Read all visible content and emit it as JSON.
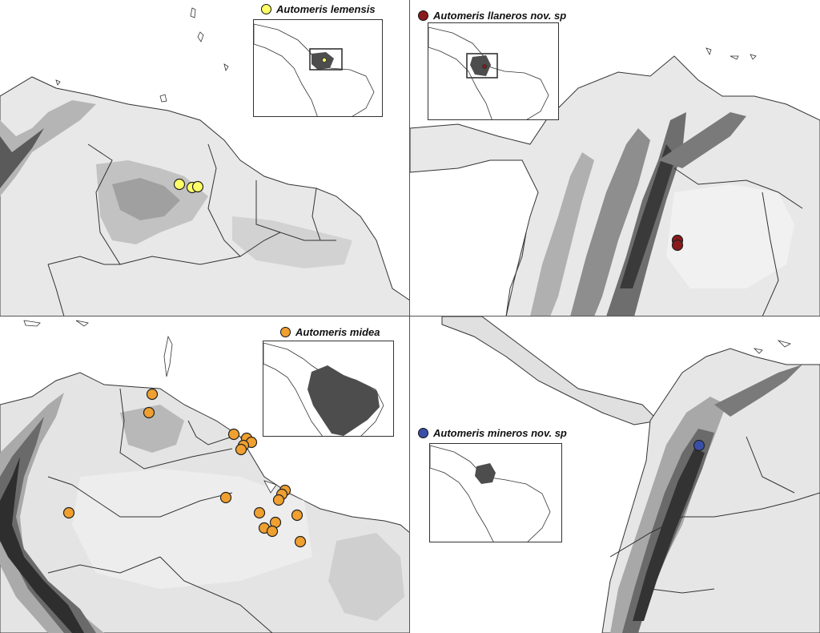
{
  "figure": {
    "panels": [
      {
        "id": "a",
        "species": "Automeris lemensis",
        "marker_color": "#ffff66",
        "inset_highlight": "venezuela-extent-box",
        "records": [
          {
            "label": "lemensis-1"
          },
          {
            "label": "lemensis-2"
          },
          {
            "label": "lemensis-3"
          }
        ]
      },
      {
        "id": "b",
        "species": "Automeris llaneros nov. sp",
        "marker_color": "#8b1a1a",
        "inset_highlight": "colombia-extent-box",
        "records": [
          {
            "label": "llaneros-1"
          },
          {
            "label": "llaneros-2"
          }
        ]
      },
      {
        "id": "c",
        "species": "Automeris midea",
        "marker_color": "#f0a030",
        "inset_highlight": "northern-south-america-range",
        "records": []
      },
      {
        "id": "d",
        "species": "Automeris mineros nov. sp",
        "marker_color": "#3a4fa8",
        "inset_highlight": "colombia",
        "records": [
          {
            "label": "mineros-1"
          }
        ]
      }
    ],
    "colors": {
      "terrain_low": "#e6e6e6",
      "terrain_mid": "#bdbdbd",
      "terrain_high": "#6e6e6e",
      "terrain_peak": "#2e2e2e",
      "border": "#333333",
      "inset_fill": "#4d4d4d"
    }
  }
}
